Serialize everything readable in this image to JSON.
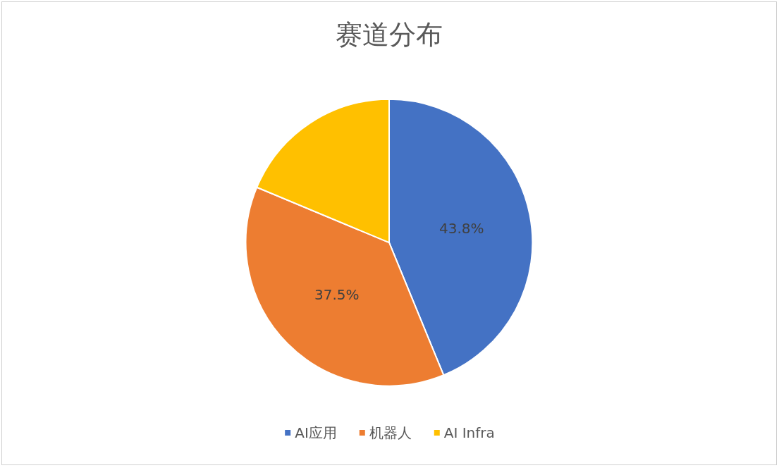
{
  "chart_data": {
    "type": "pie",
    "title": "赛道分布",
    "categories": [
      "AI应用",
      "机器人",
      "AI Infra"
    ],
    "values": [
      43.8,
      37.5,
      18.7
    ],
    "colors": [
      "#4472c4",
      "#ed7d31",
      "#ffc000"
    ],
    "value_labels": [
      "43.8%",
      "37.5%",
      null
    ],
    "legend": "bottom"
  }
}
